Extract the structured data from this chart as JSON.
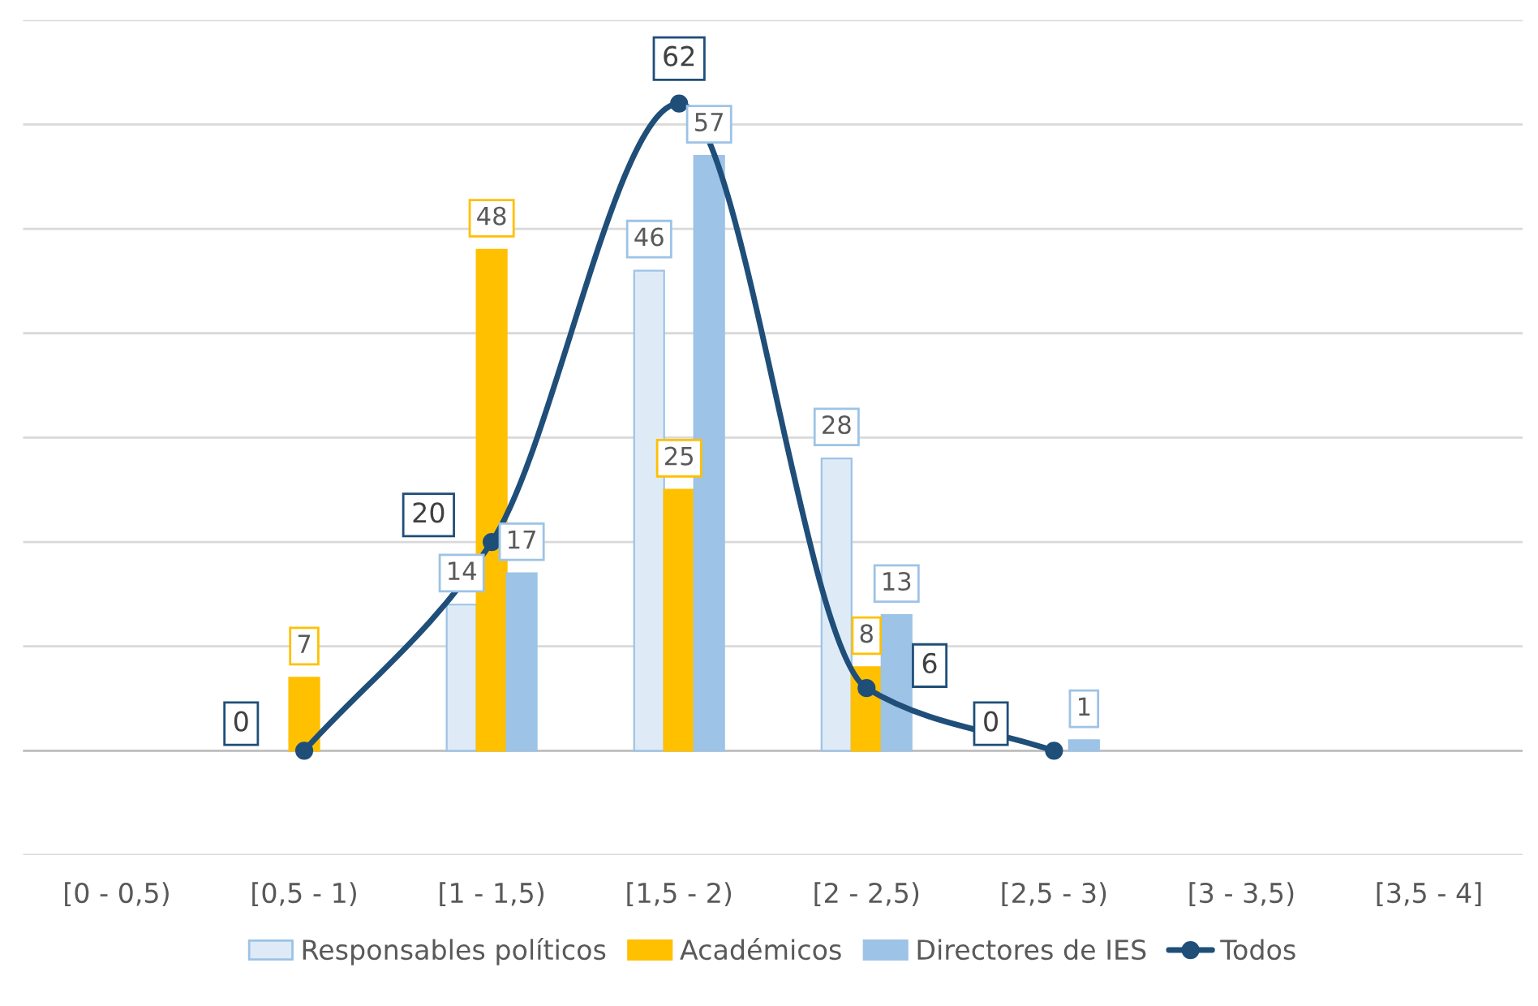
{
  "chart_data": {
    "type": "bar",
    "categories": [
      "[0 - 0,5)",
      "[0,5 - 1)",
      "[1 - 1,5)",
      "[1,5 - 2)",
      "[2 - 2,5)",
      "[2,5 - 3)",
      "[3 - 3,5)",
      "[3,5 - 4]"
    ],
    "series": [
      {
        "name": "Responsables políticos",
        "color": "#deebf7",
        "values": [
          null,
          null,
          14,
          46,
          28,
          null,
          null,
          null
        ]
      },
      {
        "name": "Académicos",
        "color": "#ffc000",
        "values": [
          null,
          7,
          48,
          25,
          8,
          null,
          null,
          null
        ]
      },
      {
        "name": "Directores de IES",
        "color": "#9dc3e6",
        "values": [
          null,
          null,
          17,
          57,
          13,
          1,
          null,
          null
        ]
      },
      {
        "name": "Todos",
        "type": "line",
        "color": "#1f4e79",
        "values": [
          null,
          0,
          20,
          62,
          6,
          0,
          null,
          null
        ],
        "marker": "circle"
      }
    ],
    "ylim": [
      -10,
      70
    ],
    "yticks": [
      {
        "value": -10,
        "label": null
      },
      {
        "value": 0,
        "label": null
      },
      {
        "value": 10,
        "label": null
      },
      {
        "value": 20,
        "label": null
      },
      {
        "value": 30,
        "label": null
      },
      {
        "value": 40,
        "label": null
      },
      {
        "value": 50,
        "label": null
      },
      {
        "value": 60,
        "label": null
      },
      {
        "value": 70,
        "label": null
      }
    ],
    "grid": "y",
    "legend": "bottom",
    "data_labels": true
  }
}
